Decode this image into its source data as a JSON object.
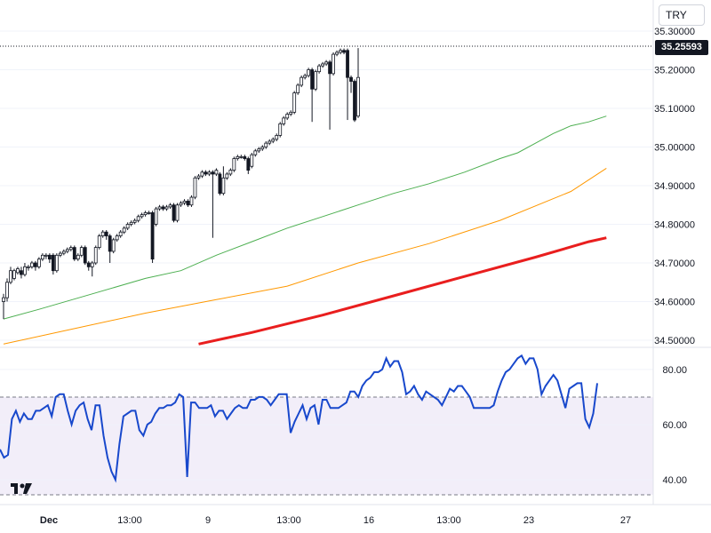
{
  "toolbar": {
    "currency": "TRY"
  },
  "price_label": "35.25593",
  "chart_data": [
    {
      "type": "candlestick",
      "y_ticks": [
        "35.30000",
        "35.20000",
        "35.10000",
        "35.00000",
        "34.90000",
        "34.80000",
        "34.70000",
        "34.60000",
        "34.50000"
      ],
      "ylim": [
        34.5,
        35.3
      ],
      "x_ticks": [
        "Dec",
        "13:00",
        "9",
        "13:00",
        "16",
        "13:00",
        "23",
        "27"
      ],
      "last_price": 35.25593,
      "candles": [
        [
          34.6,
          34.61,
          34.555,
          34.62
        ],
        [
          34.61,
          34.65,
          34.6,
          34.66
        ],
        [
          34.65,
          34.68,
          34.645,
          34.69
        ],
        [
          34.66,
          34.68,
          34.655,
          34.685
        ],
        [
          34.675,
          34.685,
          34.67,
          34.69
        ],
        [
          34.68,
          34.67,
          34.66,
          34.69
        ],
        [
          34.67,
          34.69,
          34.665,
          34.7
        ],
        [
          34.69,
          34.69,
          34.68,
          34.695
        ],
        [
          34.69,
          34.7,
          34.685,
          34.705
        ],
        [
          34.7,
          34.69,
          34.68,
          34.705
        ],
        [
          34.69,
          34.71,
          34.685,
          34.715
        ],
        [
          34.71,
          34.72,
          34.705,
          34.725
        ],
        [
          34.72,
          34.72,
          34.71,
          34.725
        ],
        [
          34.72,
          34.71,
          34.7,
          34.725
        ],
        [
          34.72,
          34.68,
          34.67,
          34.725
        ],
        [
          34.68,
          34.72,
          34.675,
          34.725
        ],
        [
          34.72,
          34.725,
          34.715,
          34.73
        ],
        [
          34.725,
          34.73,
          34.72,
          34.735
        ],
        [
          34.73,
          34.735,
          34.725,
          34.74
        ],
        [
          34.735,
          34.74,
          34.73,
          34.745
        ],
        [
          34.74,
          34.71,
          34.705,
          34.745
        ],
        [
          34.71,
          34.72,
          34.705,
          34.725
        ],
        [
          34.72,
          34.74,
          34.715,
          34.745
        ],
        [
          34.74,
          34.7,
          34.695,
          34.745
        ],
        [
          34.7,
          34.69,
          34.68,
          34.705
        ],
        [
          34.69,
          34.7,
          34.665,
          34.705
        ],
        [
          34.7,
          34.74,
          34.695,
          34.745
        ],
        [
          34.74,
          34.77,
          34.735,
          34.775
        ],
        [
          34.77,
          34.78,
          34.765,
          34.785
        ],
        [
          34.78,
          34.77,
          34.76,
          34.785
        ],
        [
          34.77,
          34.73,
          34.7,
          34.775
        ],
        [
          34.73,
          34.76,
          34.725,
          34.765
        ],
        [
          34.76,
          34.77,
          34.755,
          34.775
        ],
        [
          34.77,
          34.78,
          34.765,
          34.785
        ],
        [
          34.78,
          34.79,
          34.775,
          34.795
        ],
        [
          34.79,
          34.8,
          34.785,
          34.805
        ],
        [
          34.8,
          34.805,
          34.795,
          34.81
        ],
        [
          34.805,
          34.81,
          34.8,
          34.815
        ],
        [
          34.81,
          34.82,
          34.805,
          34.825
        ],
        [
          34.82,
          34.825,
          34.815,
          34.83
        ],
        [
          34.825,
          34.83,
          34.82,
          34.835
        ],
        [
          34.83,
          34.83,
          34.825,
          34.835
        ],
        [
          34.83,
          34.71,
          34.7,
          34.835
        ],
        [
          34.8,
          34.84,
          34.795,
          34.845
        ],
        [
          34.84,
          34.845,
          34.835,
          34.85
        ],
        [
          34.845,
          34.84,
          34.835,
          34.85
        ],
        [
          34.84,
          34.845,
          34.835,
          34.85
        ],
        [
          34.845,
          34.85,
          34.84,
          34.855
        ],
        [
          34.85,
          34.81,
          34.805,
          34.855
        ],
        [
          34.81,
          34.85,
          34.805,
          34.855
        ],
        [
          34.85,
          34.855,
          34.845,
          34.86
        ],
        [
          34.855,
          34.86,
          34.85,
          34.865
        ],
        [
          34.86,
          34.85,
          34.845,
          34.865
        ],
        [
          34.85,
          34.87,
          34.845,
          34.875
        ],
        [
          34.87,
          34.92,
          34.865,
          34.925
        ],
        [
          34.92,
          34.925,
          34.915,
          34.93
        ],
        [
          34.925,
          34.935,
          34.92,
          34.94
        ],
        [
          34.935,
          34.93,
          34.925,
          34.94
        ],
        [
          34.93,
          34.935,
          34.925,
          34.94
        ],
        [
          34.935,
          34.93,
          34.765,
          34.94
        ],
        [
          34.93,
          34.94,
          34.925,
          34.945
        ],
        [
          34.93,
          34.88,
          34.875,
          34.935
        ],
        [
          34.88,
          34.92,
          34.875,
          34.95
        ],
        [
          34.92,
          34.93,
          34.915,
          34.935
        ],
        [
          34.93,
          34.94,
          34.925,
          34.945
        ],
        [
          34.94,
          34.97,
          34.935,
          34.975
        ],
        [
          34.97,
          34.975,
          34.965,
          34.98
        ],
        [
          34.975,
          34.975,
          34.97,
          34.98
        ],
        [
          34.975,
          34.97,
          34.965,
          34.98
        ],
        [
          34.97,
          34.94,
          34.93,
          34.975
        ],
        [
          34.95,
          34.98,
          34.945,
          34.985
        ],
        [
          34.98,
          34.99,
          34.975,
          34.995
        ],
        [
          34.99,
          34.995,
          34.985,
          35.0
        ],
        [
          34.995,
          35.0,
          34.99,
          35.005
        ],
        [
          35.0,
          35.01,
          34.995,
          35.015
        ],
        [
          35.01,
          35.015,
          35.005,
          35.02
        ],
        [
          35.015,
          35.02,
          35.01,
          35.025
        ],
        [
          35.02,
          35.03,
          35.015,
          35.035
        ],
        [
          35.03,
          35.06,
          35.025,
          35.065
        ],
        [
          35.06,
          35.075,
          35.055,
          35.08
        ],
        [
          35.075,
          35.085,
          35.07,
          35.09
        ],
        [
          35.085,
          35.09,
          35.08,
          35.095
        ],
        [
          35.09,
          35.14,
          35.085,
          35.145
        ],
        [
          35.14,
          35.16,
          35.135,
          35.165
        ],
        [
          35.16,
          35.18,
          35.155,
          35.185
        ],
        [
          35.18,
          35.185,
          35.175,
          35.19
        ],
        [
          35.185,
          35.2,
          35.18,
          35.205
        ],
        [
          35.2,
          35.15,
          35.065,
          35.205
        ],
        [
          35.15,
          35.195,
          35.145,
          35.2
        ],
        [
          35.195,
          35.21,
          35.19,
          35.215
        ],
        [
          35.21,
          35.215,
          35.205,
          35.22
        ],
        [
          35.215,
          35.22,
          35.21,
          35.225
        ],
        [
          35.22,
          35.19,
          35.045,
          35.225
        ],
        [
          35.19,
          35.24,
          35.185,
          35.245
        ],
        [
          35.24,
          35.245,
          35.235,
          35.25
        ],
        [
          35.245,
          35.25,
          35.24,
          35.255
        ],
        [
          35.25,
          35.245,
          35.24,
          35.255
        ],
        [
          35.25,
          35.18,
          35.07,
          35.255
        ],
        [
          35.18,
          35.17,
          35.14,
          35.185
        ],
        [
          35.17,
          35.07,
          35.065,
          35.175
        ],
        [
          35.08,
          35.18,
          35.075,
          35.256
        ]
      ],
      "ma_fast": {
        "color": "#4caf50",
        "points": [
          [
            0,
            34.555
          ],
          [
            10,
            34.58
          ],
          [
            25,
            34.62
          ],
          [
            40,
            34.66
          ],
          [
            50,
            34.68
          ],
          [
            60,
            34.72
          ],
          [
            70,
            34.755
          ],
          [
            80,
            34.79
          ],
          [
            90,
            34.82
          ],
          [
            100,
            34.85
          ],
          [
            110,
            34.88
          ],
          [
            120,
            34.905
          ],
          [
            130,
            34.935
          ],
          [
            140,
            34.97
          ],
          [
            145,
            34.985
          ],
          [
            150,
            35.01
          ],
          [
            155,
            35.035
          ],
          [
            160,
            35.055
          ],
          [
            165,
            35.065
          ],
          [
            170,
            35.08
          ]
        ]
      },
      "ma_mid": {
        "color": "#ff9800",
        "points": [
          [
            0,
            34.49
          ],
          [
            20,
            34.53
          ],
          [
            40,
            34.57
          ],
          [
            60,
            34.605
          ],
          [
            80,
            34.64
          ],
          [
            100,
            34.7
          ],
          [
            120,
            34.75
          ],
          [
            140,
            34.81
          ],
          [
            160,
            34.885
          ],
          [
            170,
            34.945
          ]
        ]
      },
      "ma_slow": {
        "color": "#e91e1e",
        "points": [
          [
            55,
            34.49
          ],
          [
            70,
            34.52
          ],
          [
            90,
            34.565
          ],
          [
            110,
            34.615
          ],
          [
            130,
            34.665
          ],
          [
            150,
            34.715
          ],
          [
            165,
            34.755
          ],
          [
            170,
            34.765
          ]
        ]
      }
    },
    {
      "type": "line",
      "y_ticks": [
        "80.00",
        "60.00",
        "40.00"
      ],
      "ylim": [
        31,
        88
      ],
      "band": [
        30,
        70
      ],
      "series": [
        {
          "color": "#1848cc",
          "values": [
            51,
            48,
            49,
            62,
            65,
            61,
            64,
            62,
            62,
            65,
            65,
            66,
            67,
            63,
            70,
            71,
            71,
            65,
            60,
            65,
            67,
            68,
            62,
            58,
            67,
            67,
            56,
            48,
            43,
            40,
            53,
            63,
            64,
            65,
            65,
            58,
            56,
            60,
            61,
            64,
            66,
            66,
            67,
            67,
            68,
            71,
            70,
            41,
            68,
            68,
            66,
            66,
            66,
            67,
            63,
            65,
            65,
            62,
            64,
            66,
            67,
            66,
            66,
            69,
            69,
            70,
            70,
            69,
            67,
            69,
            71,
            71,
            71,
            57,
            61,
            64,
            67,
            62,
            66,
            67,
            60,
            69,
            69,
            66,
            66,
            66,
            67,
            68,
            72,
            72,
            70,
            74,
            76,
            77,
            79,
            79,
            80,
            84,
            81,
            83,
            83,
            79,
            71,
            72,
            74,
            71,
            69,
            72,
            71,
            70,
            69,
            67,
            70,
            73,
            72,
            74,
            74,
            72,
            70,
            66,
            66,
            66,
            66,
            66,
            67,
            72,
            76,
            79,
            80,
            82,
            84,
            85,
            82,
            84,
            84,
            80,
            71,
            74,
            76,
            78,
            76,
            71,
            66,
            73,
            74,
            75,
            75,
            62,
            59,
            64,
            75
          ]
        }
      ]
    }
  ]
}
